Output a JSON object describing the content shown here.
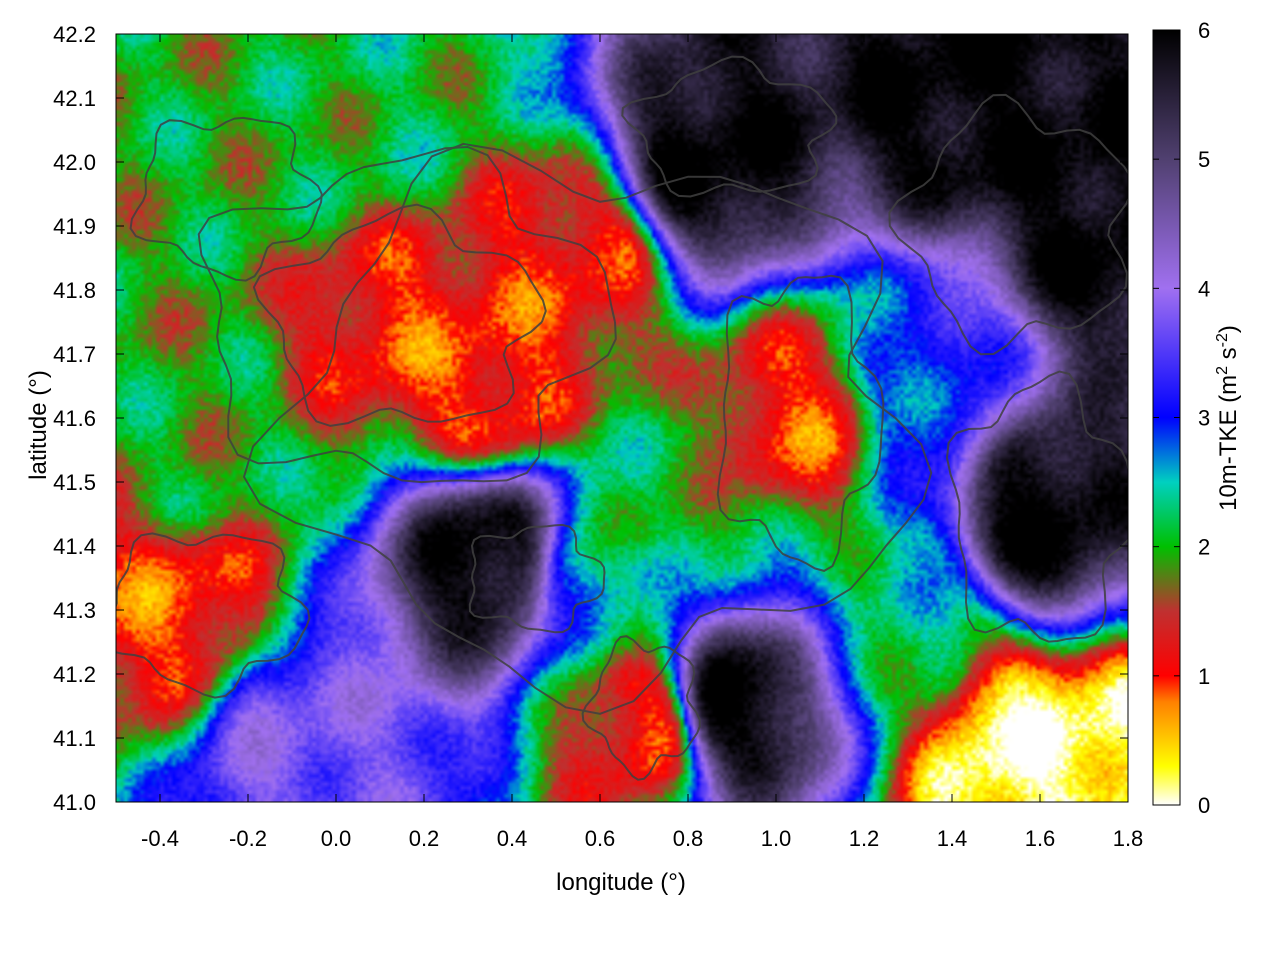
{
  "chart_data": {
    "type": "heatmap",
    "title": "",
    "xlabel": "longitude (°)",
    "ylabel": "latitude (°)",
    "xlim": [
      -0.5,
      1.8
    ],
    "ylim": [
      41.0,
      42.2
    ],
    "xticks": [
      "-0.4",
      "-0.2",
      "0.0",
      "0.2",
      "0.4",
      "0.6",
      "0.8",
      "1.0",
      "1.2",
      "1.4",
      "1.6",
      "1.8"
    ],
    "xtick_values": [
      -0.4,
      -0.2,
      0.0,
      0.2,
      0.4,
      0.6,
      0.8,
      1.0,
      1.2,
      1.4,
      1.6,
      1.8
    ],
    "yticks": [
      "41.0",
      "41.1",
      "41.2",
      "41.3",
      "41.4",
      "41.5",
      "41.6",
      "41.7",
      "41.8",
      "41.9",
      "42.0",
      "42.1",
      "42.2"
    ],
    "ytick_values": [
      41.0,
      41.1,
      41.2,
      41.3,
      41.4,
      41.5,
      41.6,
      41.7,
      41.8,
      41.9,
      42.0,
      42.1,
      42.2
    ],
    "colorbar": {
      "label_main": "10m-TKE (m",
      "label_sup1": "2",
      "label_mid": " s",
      "label_sup2": "-2",
      "label_end": ")",
      "range": [
        0,
        6
      ],
      "ticks": [
        "0",
        "1",
        "2",
        "3",
        "4",
        "5",
        "6"
      ],
      "tick_values": [
        0,
        1,
        2,
        3,
        4,
        5,
        6
      ],
      "stops": [
        {
          "v": 0.0,
          "color": "#ffffff"
        },
        {
          "v": 0.3,
          "color": "#ffff00"
        },
        {
          "v": 0.8,
          "color": "#ff8000"
        },
        {
          "v": 1.0,
          "color": "#ff0000"
        },
        {
          "v": 1.5,
          "color": "#c03030"
        },
        {
          "v": 2.0,
          "color": "#00c000"
        },
        {
          "v": 2.5,
          "color": "#00d0c0"
        },
        {
          "v": 3.0,
          "color": "#0000ff"
        },
        {
          "v": 4.0,
          "color": "#a070f0"
        },
        {
          "v": 5.0,
          "color": "#504070"
        },
        {
          "v": 6.0,
          "color": "#000000"
        }
      ]
    },
    "field_centers": [
      {
        "lon": 0.15,
        "lat": 41.75,
        "tke": 1.0
      },
      {
        "lon": 0.35,
        "lat": 41.65,
        "tke": 0.9
      },
      {
        "lon": -0.35,
        "lat": 41.3,
        "tke": 0.95
      },
      {
        "lon": 1.05,
        "lat": 41.6,
        "tke": 1.0
      },
      {
        "lon": 0.55,
        "lat": 41.85,
        "tke": 1.05
      },
      {
        "lon": 0.7,
        "lat": 41.12,
        "tke": 1.0
      },
      {
        "lon": 1.75,
        "lat": 41.9,
        "tke": 6.0
      },
      {
        "lon": 0.85,
        "lat": 42.0,
        "tke": 6.0
      },
      {
        "lon": 1.4,
        "lat": 42.1,
        "tke": 6.0
      },
      {
        "lon": 1.6,
        "lat": 41.45,
        "tke": 6.0
      },
      {
        "lon": 0.9,
        "lat": 41.15,
        "tke": 6.0
      },
      {
        "lon": 0.35,
        "lat": 41.38,
        "tke": 6.0
      },
      {
        "lon": 1.55,
        "lat": 41.08,
        "tke": 0.1
      },
      {
        "lon": 1.75,
        "lat": 41.05,
        "tke": 0.1
      },
      {
        "lon": -0.2,
        "lat": 42.0,
        "tke": 2.0
      },
      {
        "lon": 0.1,
        "lat": 42.05,
        "tke": 2.1
      },
      {
        "lon": -0.3,
        "lat": 41.55,
        "tke": 2.0
      },
      {
        "lon": 0.75,
        "lat": 41.45,
        "tke": 2.0
      },
      {
        "lon": 1.3,
        "lat": 41.3,
        "tke": 2.3
      },
      {
        "lon": 1.35,
        "lat": 41.65,
        "tke": 3.0
      },
      {
        "lon": -0.1,
        "lat": 41.1,
        "tke": 3.8
      },
      {
        "lon": 0.6,
        "lat": 41.35,
        "tke": 2.5
      }
    ]
  }
}
